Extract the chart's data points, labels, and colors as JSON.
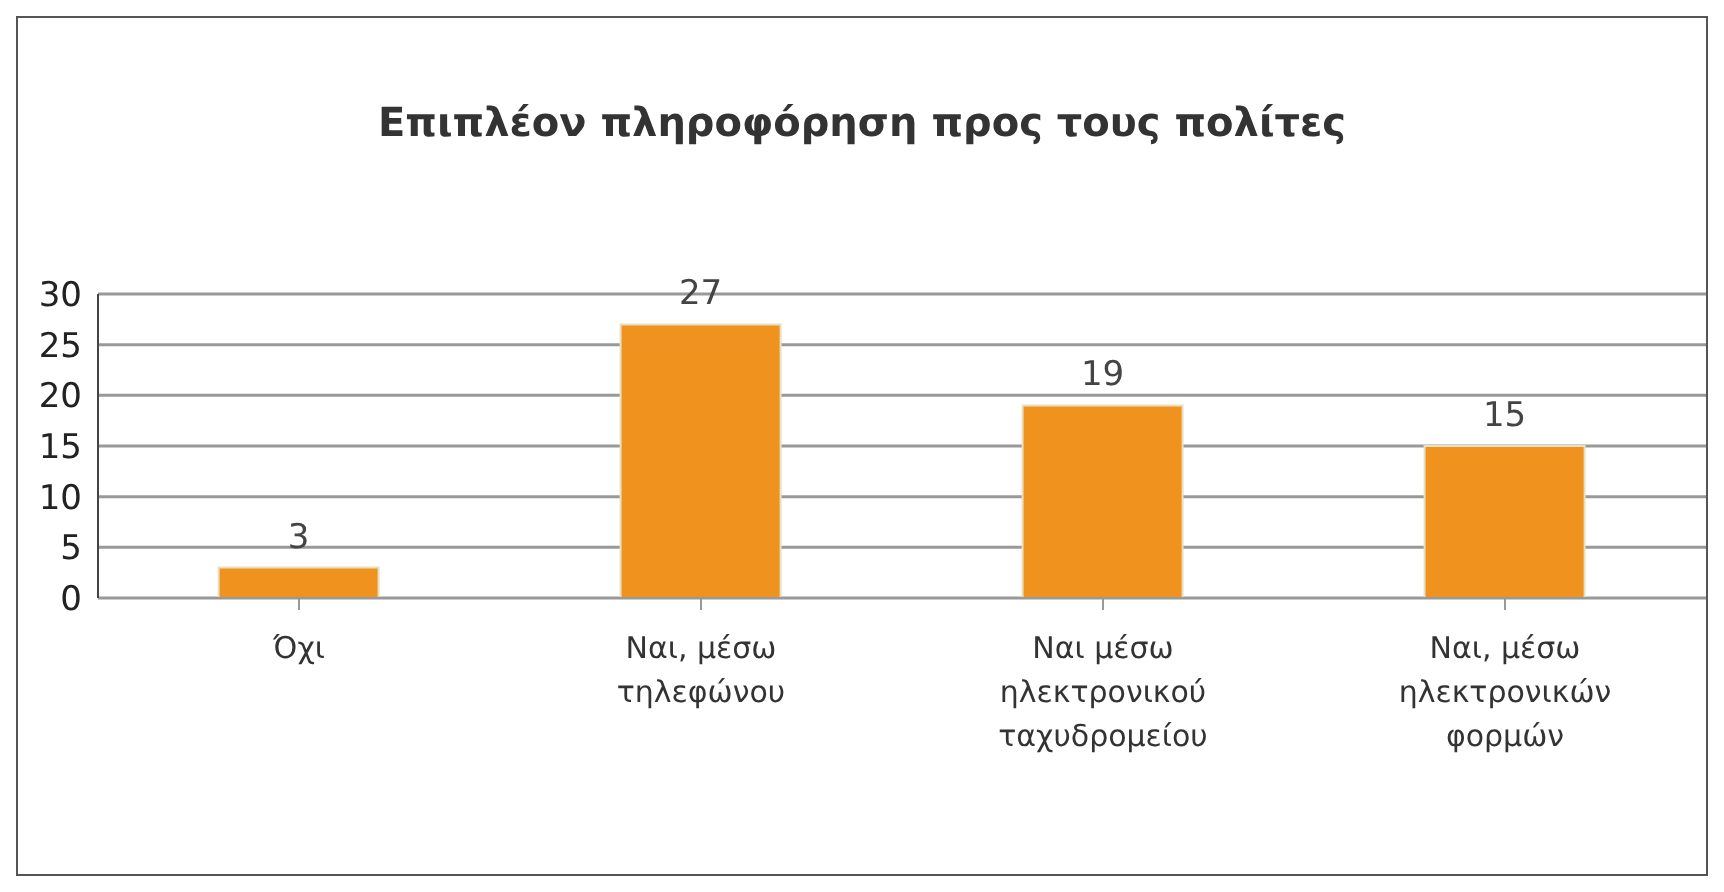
{
  "chart_data": {
    "type": "bar",
    "title": "Επιπλέον πληροφόρηση προς τους πολίτες",
    "categories": [
      "Όχι",
      "Ναι, μέσω τηλεφώνου",
      "Ναι μέσω ηλεκτρονικού ταχυδρομείου",
      "Ναι, μέσω ηλεκτρονικών φορμών"
    ],
    "values": [
      3,
      27,
      19,
      15
    ],
    "color": "#f0931e",
    "ylim": [
      0,
      30
    ],
    "yticks": [
      0,
      5,
      10,
      15,
      20,
      25,
      30
    ],
    "grid": "y",
    "data_labels": true,
    "legend": false
  }
}
